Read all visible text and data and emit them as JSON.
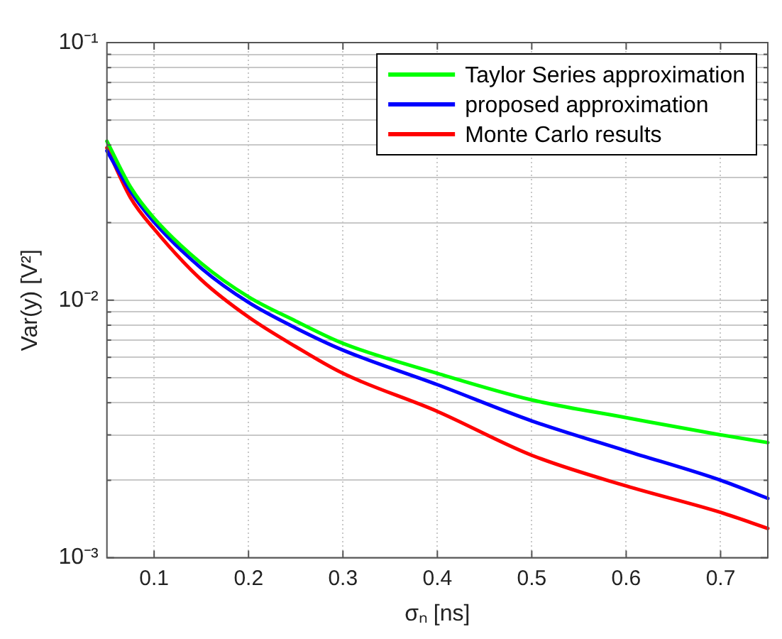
{
  "chart_data": {
    "type": "line",
    "xlabel": "σₙ [ns]",
    "ylabel": "Var(y) [V²]",
    "log": "y",
    "grid": true,
    "legend": "top right",
    "line_style": "solid",
    "marker": "none",
    "xlim": [
      0.05,
      0.75
    ],
    "xticks": [
      0.1,
      0.2,
      0.3,
      0.4,
      0.5,
      0.6,
      0.7
    ],
    "ylim": [
      0.001,
      0.1
    ],
    "yticks": [
      {
        "value": 0.001,
        "label": "10⁻³"
      },
      {
        "value": 0.002,
        "label": null
      },
      {
        "value": 0.003,
        "label": null
      },
      {
        "value": 0.004,
        "label": null
      },
      {
        "value": 0.005,
        "label": null
      },
      {
        "value": 0.006,
        "label": null
      },
      {
        "value": 0.007,
        "label": null
      },
      {
        "value": 0.008,
        "label": null
      },
      {
        "value": 0.009,
        "label": null
      },
      {
        "value": 0.01,
        "label": "10⁻²"
      },
      {
        "value": 0.02,
        "label": null
      },
      {
        "value": 0.03,
        "label": null
      },
      {
        "value": 0.04,
        "label": null
      },
      {
        "value": 0.05,
        "label": null
      },
      {
        "value": 0.06,
        "label": null
      },
      {
        "value": 0.07,
        "label": null
      },
      {
        "value": 0.08,
        "label": null
      },
      {
        "value": 0.09,
        "label": null
      },
      {
        "value": 0.1,
        "label": "10⁻¹"
      }
    ],
    "x": [
      0.05,
      0.075,
      0.1,
      0.15,
      0.2,
      0.25,
      0.3,
      0.4,
      0.5,
      0.6,
      0.7,
      0.75
    ],
    "series": [
      {
        "name": "Taylor Series approximation",
        "color": "#00ff00",
        "values": [
          0.0414,
          0.0275,
          0.0208,
          0.0139,
          0.0103,
          0.0083,
          0.0068,
          0.0052,
          0.0041,
          0.0035,
          0.003,
          0.0028
        ]
      },
      {
        "name": "proposed approximation",
        "color": "#0000ff",
        "values": [
          0.038,
          0.0265,
          0.0201,
          0.0133,
          0.0098,
          0.0078,
          0.0064,
          0.0047,
          0.0034,
          0.0026,
          0.002,
          0.0017
        ]
      },
      {
        "name": "Monte Carlo results",
        "color": "#ff0000",
        "values": [
          0.039,
          0.025,
          0.0189,
          0.012,
          0.0086,
          0.0066,
          0.0052,
          0.0037,
          0.0025,
          0.0019,
          0.0015,
          0.0013
        ]
      }
    ]
  }
}
